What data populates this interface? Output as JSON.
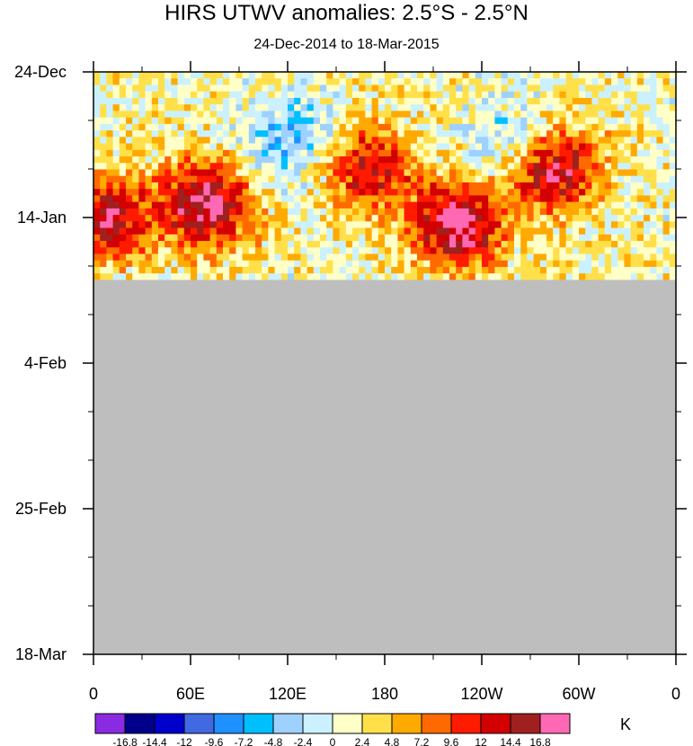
{
  "header": {
    "title": "HIRS UTWV anomalies: 2.5°S - 2.5°N",
    "subtitle": "24-Dec-2014 to 18-Mar-2015"
  },
  "colorbar": {
    "unit": "K",
    "labels": [
      "-16.8",
      "-14.4",
      "-12",
      "-9.6",
      "-7.2",
      "-4.8",
      "-2.4",
      "0",
      "2.4",
      "4.8",
      "7.2",
      "9.6",
      "12",
      "14.4",
      "16.8"
    ],
    "colors": [
      "#8a2be2",
      "#00008b",
      "#0000cd",
      "#4169e1",
      "#1e90ff",
      "#00bfff",
      "#9fd1ff",
      "#cbf1ff",
      "#ffffc8",
      "#ffe04a",
      "#ffaa00",
      "#ff6a00",
      "#ff1a00",
      "#d20000",
      "#a02020",
      "#ff69b4"
    ]
  },
  "chart_data": {
    "type": "heatmap",
    "title": "HIRS UTWV anomalies: 2.5°S - 2.5°N",
    "subtitle": "24-Dec-2014 to 18-Mar-2015",
    "x_ticks": [
      {
        "lon": 0,
        "label": "0"
      },
      {
        "lon": 60,
        "label": "60E"
      },
      {
        "lon": 120,
        "label": "120E"
      },
      {
        "lon": 180,
        "label": "180"
      },
      {
        "lon": 240,
        "label": "120W"
      },
      {
        "lon": 300,
        "label": "60W"
      },
      {
        "lon": 360,
        "label": "0"
      }
    ],
    "xlim": [
      0,
      360
    ],
    "y_ticks": [
      {
        "day": 0,
        "label": "24-Dec"
      },
      {
        "day": 21,
        "label": "14-Jan"
      },
      {
        "day": 42,
        "label": "4-Feb"
      },
      {
        "day": 63,
        "label": "25-Feb"
      },
      {
        "day": 84,
        "label": "18-Mar"
      }
    ],
    "ylim_days": [
      0,
      84
    ],
    "data_end_day": 30,
    "missing_color": "#bebebe",
    "features": [
      {
        "lon": 170,
        "day": 14,
        "value": 12
      },
      {
        "lon": 225,
        "day": 22,
        "value": 16.8
      },
      {
        "lon": 70,
        "day": 19,
        "value": 16.8
      },
      {
        "lon": 285,
        "day": 14,
        "value": 15
      },
      {
        "lon": 8,
        "day": 21,
        "value": 14
      },
      {
        "lon": 120,
        "day": 10,
        "value": -7.5
      },
      {
        "lon": 260,
        "day": 10,
        "value": -5
      }
    ]
  }
}
